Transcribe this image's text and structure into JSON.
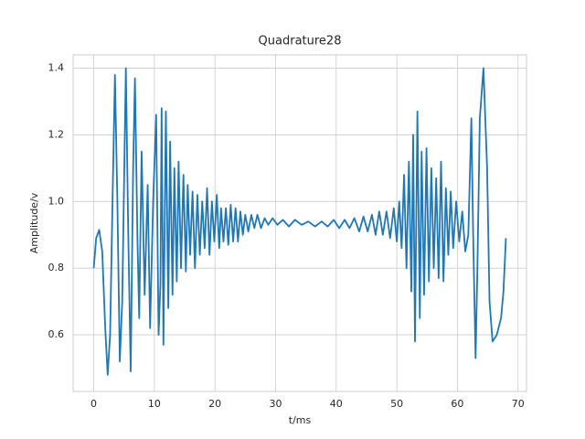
{
  "chart_data": {
    "type": "line",
    "title": "Quadrature28",
    "x_label": "t/ms",
    "y_label": "Amplitude/v",
    "xlim": [
      -3.4,
      71.4
    ],
    "ylim": [
      0.43,
      1.44
    ],
    "xticks": [
      0,
      10,
      20,
      30,
      40,
      50,
      60,
      70
    ],
    "yticks": [
      0.6,
      0.8,
      {
        "value": 1,
        "label": "1.0"
      },
      1.2,
      1.4
    ],
    "grid": true,
    "series": [
      {
        "color": "#1f77b4",
        "x": [
          0,
          0.4,
          0.9,
          1.4,
          1.9,
          2.3,
          2.7,
          3.1,
          3.5,
          3.9,
          4.3,
          4.7,
          5.3,
          5.7,
          6.1,
          6.5,
          6.8,
          7.2,
          7.5,
          7.9,
          8.4,
          8.9,
          9.3,
          9.8,
          10.3,
          10.7,
          11.0,
          11.2,
          11.5,
          11.9,
          12.3,
          12.6,
          13.0,
          13.3,
          13.7,
          14.0,
          14.4,
          14.8,
          15.2,
          15.5,
          15.9,
          16.3,
          16.7,
          17.1,
          17.5,
          17.9,
          18.3,
          18.7,
          19.1,
          19.5,
          19.9,
          20.3,
          20.7,
          21.0,
          21.4,
          21.8,
          22.2,
          22.6,
          23.0,
          23.4,
          23.8,
          24.2,
          24.6,
          25.0,
          25.5,
          26.0,
          26.5,
          27.0,
          27.6,
          28.2,
          28.8,
          29.5,
          30.3,
          31.2,
          32.2,
          33.2,
          34.3,
          35.4,
          36.5,
          37.6,
          38.6,
          39.6,
          40.5,
          41.4,
          42.2,
          43.0,
          43.8,
          44.5,
          45.2,
          45.9,
          46.5,
          47.1,
          47.7,
          48.3,
          48.9,
          49.5,
          50.0,
          50.4,
          50.8,
          51.2,
          51.6,
          52.0,
          52.4,
          52.7,
          53.0,
          53.4,
          53.8,
          54.1,
          54.5,
          54.9,
          55.3,
          55.7,
          56.1,
          56.5,
          56.9,
          57.3,
          57.7,
          58.1,
          58.5,
          58.9,
          59.3,
          59.8,
          60.3,
          60.8,
          61.3,
          61.8,
          62.3,
          62.6,
          63.0,
          63.3,
          63.7,
          64.3,
          64.9,
          65.3,
          65.8,
          66.5,
          67.2,
          67.6,
          68.0
        ],
        "values": [
          0.8,
          0.89,
          0.915,
          0.85,
          0.62,
          0.48,
          0.6,
          1.0,
          1.38,
          1.0,
          0.52,
          0.7,
          1.4,
          0.9,
          0.49,
          1.1,
          1.37,
          0.9,
          0.65,
          1.15,
          0.72,
          1.05,
          0.62,
          1.0,
          1.26,
          0.6,
          0.75,
          1.28,
          0.57,
          1.27,
          0.68,
          1.18,
          0.72,
          1.1,
          0.76,
          1.12,
          0.8,
          1.08,
          0.79,
          1.05,
          0.84,
          1.03,
          0.8,
          1.02,
          0.84,
          1.0,
          0.86,
          1.04,
          0.84,
          1.0,
          0.88,
          1.02,
          0.86,
          0.98,
          0.88,
          0.98,
          0.87,
          0.99,
          0.88,
          0.98,
          0.88,
          0.97,
          0.9,
          0.96,
          0.91,
          0.96,
          0.92,
          0.96,
          0.92,
          0.95,
          0.93,
          0.95,
          0.93,
          0.945,
          0.925,
          0.945,
          0.93,
          0.94,
          0.925,
          0.94,
          0.925,
          0.945,
          0.92,
          0.945,
          0.92,
          0.95,
          0.91,
          0.955,
          0.91,
          0.96,
          0.9,
          0.97,
          0.9,
          0.97,
          0.89,
          0.98,
          0.88,
          1.0,
          0.86,
          1.08,
          0.8,
          1.12,
          0.73,
          1.2,
          0.58,
          1.27,
          0.65,
          1.15,
          0.72,
          1.16,
          0.76,
          1.1,
          0.8,
          1.07,
          0.77,
          1.12,
          0.76,
          1.04,
          0.84,
          1.03,
          0.86,
          1.0,
          0.88,
          0.97,
          0.85,
          0.9,
          1.25,
          0.9,
          0.53,
          0.8,
          1.25,
          1.4,
          1.1,
          0.7,
          0.58,
          0.6,
          0.65,
          0.73,
          0.89
        ]
      }
    ]
  }
}
